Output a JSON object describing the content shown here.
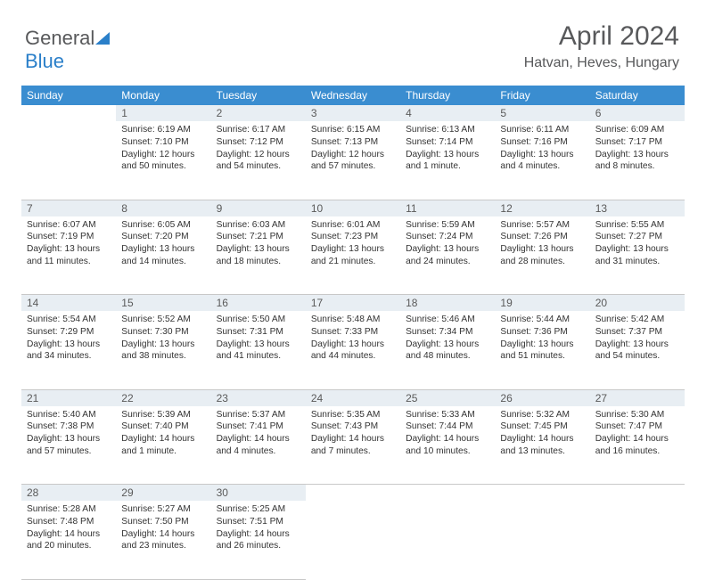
{
  "logo": {
    "part1": "General",
    "part2": "Blue"
  },
  "title": "April 2024",
  "location": "Hatvan, Heves, Hungary",
  "colors": {
    "header_bg": "#3a8dd0",
    "header_text": "#ffffff",
    "daynum_bg": "#e8eef3",
    "text": "#333333",
    "title_color": "#58595b",
    "border": "#c8c8c8"
  },
  "weekdays": [
    "Sunday",
    "Monday",
    "Tuesday",
    "Wednesday",
    "Thursday",
    "Friday",
    "Saturday"
  ],
  "weeks": [
    {
      "nums": [
        "",
        "1",
        "2",
        "3",
        "4",
        "5",
        "6"
      ],
      "cells": [
        null,
        {
          "sunrise": "Sunrise: 6:19 AM",
          "sunset": "Sunset: 7:10 PM",
          "daylight": "Daylight: 12 hours and 50 minutes."
        },
        {
          "sunrise": "Sunrise: 6:17 AM",
          "sunset": "Sunset: 7:12 PM",
          "daylight": "Daylight: 12 hours and 54 minutes."
        },
        {
          "sunrise": "Sunrise: 6:15 AM",
          "sunset": "Sunset: 7:13 PM",
          "daylight": "Daylight: 12 hours and 57 minutes."
        },
        {
          "sunrise": "Sunrise: 6:13 AM",
          "sunset": "Sunset: 7:14 PM",
          "daylight": "Daylight: 13 hours and 1 minute."
        },
        {
          "sunrise": "Sunrise: 6:11 AM",
          "sunset": "Sunset: 7:16 PM",
          "daylight": "Daylight: 13 hours and 4 minutes."
        },
        {
          "sunrise": "Sunrise: 6:09 AM",
          "sunset": "Sunset: 7:17 PM",
          "daylight": "Daylight: 13 hours and 8 minutes."
        }
      ]
    },
    {
      "nums": [
        "7",
        "8",
        "9",
        "10",
        "11",
        "12",
        "13"
      ],
      "cells": [
        {
          "sunrise": "Sunrise: 6:07 AM",
          "sunset": "Sunset: 7:19 PM",
          "daylight": "Daylight: 13 hours and 11 minutes."
        },
        {
          "sunrise": "Sunrise: 6:05 AM",
          "sunset": "Sunset: 7:20 PM",
          "daylight": "Daylight: 13 hours and 14 minutes."
        },
        {
          "sunrise": "Sunrise: 6:03 AM",
          "sunset": "Sunset: 7:21 PM",
          "daylight": "Daylight: 13 hours and 18 minutes."
        },
        {
          "sunrise": "Sunrise: 6:01 AM",
          "sunset": "Sunset: 7:23 PM",
          "daylight": "Daylight: 13 hours and 21 minutes."
        },
        {
          "sunrise": "Sunrise: 5:59 AM",
          "sunset": "Sunset: 7:24 PM",
          "daylight": "Daylight: 13 hours and 24 minutes."
        },
        {
          "sunrise": "Sunrise: 5:57 AM",
          "sunset": "Sunset: 7:26 PM",
          "daylight": "Daylight: 13 hours and 28 minutes."
        },
        {
          "sunrise": "Sunrise: 5:55 AM",
          "sunset": "Sunset: 7:27 PM",
          "daylight": "Daylight: 13 hours and 31 minutes."
        }
      ]
    },
    {
      "nums": [
        "14",
        "15",
        "16",
        "17",
        "18",
        "19",
        "20"
      ],
      "cells": [
        {
          "sunrise": "Sunrise: 5:54 AM",
          "sunset": "Sunset: 7:29 PM",
          "daylight": "Daylight: 13 hours and 34 minutes."
        },
        {
          "sunrise": "Sunrise: 5:52 AM",
          "sunset": "Sunset: 7:30 PM",
          "daylight": "Daylight: 13 hours and 38 minutes."
        },
        {
          "sunrise": "Sunrise: 5:50 AM",
          "sunset": "Sunset: 7:31 PM",
          "daylight": "Daylight: 13 hours and 41 minutes."
        },
        {
          "sunrise": "Sunrise: 5:48 AM",
          "sunset": "Sunset: 7:33 PM",
          "daylight": "Daylight: 13 hours and 44 minutes."
        },
        {
          "sunrise": "Sunrise: 5:46 AM",
          "sunset": "Sunset: 7:34 PM",
          "daylight": "Daylight: 13 hours and 48 minutes."
        },
        {
          "sunrise": "Sunrise: 5:44 AM",
          "sunset": "Sunset: 7:36 PM",
          "daylight": "Daylight: 13 hours and 51 minutes."
        },
        {
          "sunrise": "Sunrise: 5:42 AM",
          "sunset": "Sunset: 7:37 PM",
          "daylight": "Daylight: 13 hours and 54 minutes."
        }
      ]
    },
    {
      "nums": [
        "21",
        "22",
        "23",
        "24",
        "25",
        "26",
        "27"
      ],
      "cells": [
        {
          "sunrise": "Sunrise: 5:40 AM",
          "sunset": "Sunset: 7:38 PM",
          "daylight": "Daylight: 13 hours and 57 minutes."
        },
        {
          "sunrise": "Sunrise: 5:39 AM",
          "sunset": "Sunset: 7:40 PM",
          "daylight": "Daylight: 14 hours and 1 minute."
        },
        {
          "sunrise": "Sunrise: 5:37 AM",
          "sunset": "Sunset: 7:41 PM",
          "daylight": "Daylight: 14 hours and 4 minutes."
        },
        {
          "sunrise": "Sunrise: 5:35 AM",
          "sunset": "Sunset: 7:43 PM",
          "daylight": "Daylight: 14 hours and 7 minutes."
        },
        {
          "sunrise": "Sunrise: 5:33 AM",
          "sunset": "Sunset: 7:44 PM",
          "daylight": "Daylight: 14 hours and 10 minutes."
        },
        {
          "sunrise": "Sunrise: 5:32 AM",
          "sunset": "Sunset: 7:45 PM",
          "daylight": "Daylight: 14 hours and 13 minutes."
        },
        {
          "sunrise": "Sunrise: 5:30 AM",
          "sunset": "Sunset: 7:47 PM",
          "daylight": "Daylight: 14 hours and 16 minutes."
        }
      ]
    },
    {
      "nums": [
        "28",
        "29",
        "30",
        "",
        "",
        "",
        ""
      ],
      "cells": [
        {
          "sunrise": "Sunrise: 5:28 AM",
          "sunset": "Sunset: 7:48 PM",
          "daylight": "Daylight: 14 hours and 20 minutes."
        },
        {
          "sunrise": "Sunrise: 5:27 AM",
          "sunset": "Sunset: 7:50 PM",
          "daylight": "Daylight: 14 hours and 23 minutes."
        },
        {
          "sunrise": "Sunrise: 5:25 AM",
          "sunset": "Sunset: 7:51 PM",
          "daylight": "Daylight: 14 hours and 26 minutes."
        },
        null,
        null,
        null,
        null
      ]
    }
  ]
}
